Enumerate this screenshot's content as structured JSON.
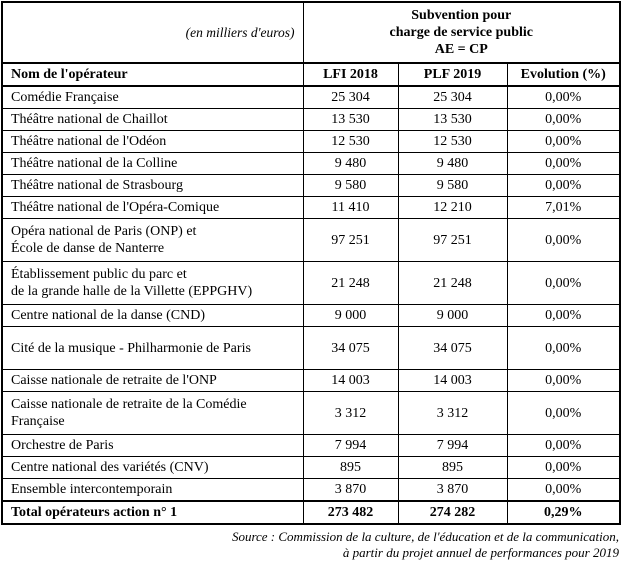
{
  "header": {
    "unit_label": "(en milliers d'euros)",
    "merged_title": "Subvention pour\ncharge de service public\nAE = CP",
    "columns": {
      "name": "Nom de l'opérateur",
      "lfi": "LFI 2018",
      "plf": "PLF 2019",
      "evolution": "Evolution (%)"
    }
  },
  "rows": [
    {
      "name": "Comédie Française",
      "lfi": "25 304",
      "plf": "25 304",
      "evolution": "0,00%"
    },
    {
      "name": "Théâtre national de Chaillot",
      "lfi": "13 530",
      "plf": "13 530",
      "evolution": "0,00%"
    },
    {
      "name": "Théâtre national de l'Odéon",
      "lfi": "12 530",
      "plf": "12 530",
      "evolution": "0,00%"
    },
    {
      "name": "Théâtre national de la Colline",
      "lfi": "9 480",
      "plf": "9 480",
      "evolution": "0,00%"
    },
    {
      "name": "Théâtre national de Strasbourg",
      "lfi": "9 580",
      "plf": "9 580",
      "evolution": "0,00%"
    },
    {
      "name": "Théâtre national de l'Opéra-Comique",
      "lfi": "11 410",
      "plf": "12 210",
      "evolution": "7,01%"
    },
    {
      "name": "Opéra national de Paris (ONP) et\nÉcole de danse de Nanterre",
      "lfi": "97 251",
      "plf": "97 251",
      "evolution": "0,00%"
    },
    {
      "name": "Établissement public du parc et\nde la grande halle de la Villette (EPPGHV)",
      "lfi": "21 248",
      "plf": "21 248",
      "evolution": "0,00%"
    },
    {
      "name": "Centre national de la danse (CND)",
      "lfi": "9 000",
      "plf": "9 000",
      "evolution": "0,00%"
    },
    {
      "name": "Cité de la musique - Philharmonie de Paris",
      "lfi": "34 075",
      "plf": "34 075",
      "evolution": "0,00%"
    },
    {
      "name": "Caisse nationale de retraite de l'ONP",
      "lfi": "14 003",
      "plf": "14 003",
      "evolution": "0,00%"
    },
    {
      "name": "Caisse nationale de retraite de la Comédie\nFrançaise",
      "lfi": "3 312",
      "plf": "3 312",
      "evolution": "0,00%"
    },
    {
      "name": "Orchestre de Paris",
      "lfi": "7 994",
      "plf": "7 994",
      "evolution": "0,00%"
    },
    {
      "name": "Centre national des variétés (CNV)",
      "lfi": "895",
      "plf": "895",
      "evolution": "0,00%"
    },
    {
      "name": "Ensemble intercontemporain",
      "lfi": "3 870",
      "plf": "3 870",
      "evolution": "0,00%"
    }
  ],
  "total": {
    "name": "Total opérateurs action n° 1",
    "lfi": "273 482",
    "plf": "274 282",
    "evolution": "0,29%"
  },
  "source": {
    "line1": "Source : Commission de la culture, de l'éducation et de la communication,",
    "line2": "à partir du projet annuel de performances pour 2019"
  }
}
